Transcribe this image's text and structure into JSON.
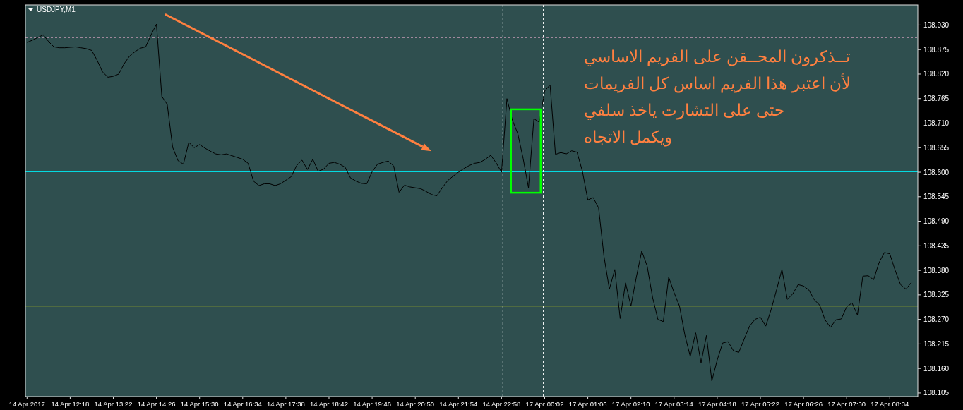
{
  "chart_data": {
    "type": "line",
    "title": "USDJPY,M1",
    "categories": [
      "14 Apr 2017",
      null,
      null,
      null,
      null,
      null,
      null,
      null,
      "14 Apr 12:18",
      null,
      null,
      null,
      null,
      null,
      null,
      null,
      "14 Apr 13:22",
      null,
      null,
      null,
      null,
      null,
      null,
      null,
      "14 Apr 14:26",
      null,
      null,
      null,
      null,
      null,
      null,
      null,
      "14 Apr 15:30",
      null,
      null,
      null,
      null,
      null,
      null,
      null,
      "14 Apr 16:34",
      null,
      null,
      null,
      null,
      null,
      null,
      null,
      "14 Apr 17:38",
      null,
      null,
      null,
      null,
      null,
      null,
      null,
      "14 Apr 18:42",
      null,
      null,
      null,
      null,
      null,
      null,
      null,
      "14 Apr 19:46",
      null,
      null,
      null,
      null,
      null,
      null,
      null,
      "14 Apr 20:50",
      null,
      null,
      null,
      null,
      null,
      null,
      null,
      "14 Apr 21:54",
      null,
      null,
      null,
      null,
      null,
      null,
      null,
      "14 Apr 22:58",
      null,
      null,
      null,
      null,
      null,
      null,
      null,
      "17 Apr 00:02",
      null,
      null,
      null,
      null,
      null,
      null,
      null,
      "17 Apr 01:06",
      null,
      null,
      null,
      null,
      null,
      null,
      null,
      "17 Apr 02:10",
      null,
      null,
      null,
      null,
      null,
      null,
      null,
      "17 Apr 03:14",
      null,
      null,
      null,
      null,
      null,
      null,
      null,
      "17 Apr 04:18",
      null,
      null,
      null,
      null,
      null,
      null,
      null,
      "17 Apr 05:22",
      null,
      null,
      null,
      null,
      null,
      null,
      null,
      "17 Apr 06:26",
      null,
      null,
      null,
      null,
      null,
      null,
      null,
      "17 Apr 07:30",
      null,
      null,
      null,
      null,
      null,
      null,
      null,
      "17 Apr 08:34",
      null,
      null,
      null,
      null
    ],
    "ylim": [
      108.097,
      108.975
    ],
    "yticks": [
      {
        "value": 108.105,
        "label": "108.105"
      },
      {
        "value": 108.16,
        "label": "108.160"
      },
      {
        "value": 108.215,
        "label": "108.215"
      },
      {
        "value": 108.27,
        "label": "108.270"
      },
      {
        "value": 108.325,
        "label": "108.325"
      },
      {
        "value": 108.38,
        "label": "108.380"
      },
      {
        "value": 108.435,
        "label": "108.435"
      },
      {
        "value": 108.49,
        "label": "108.490"
      },
      {
        "value": 108.545,
        "label": "108.545"
      },
      {
        "value": 108.6,
        "label": "108.600"
      },
      {
        "value": 108.655,
        "label": "108.655"
      },
      {
        "value": 108.71,
        "label": "108.710"
      },
      {
        "value": 108.765,
        "label": "108.765"
      },
      {
        "value": 108.82,
        "label": "108.820"
      },
      {
        "value": 108.875,
        "label": "108.875"
      },
      {
        "value": 108.93,
        "label": "108.930"
      }
    ],
    "series": [
      {
        "color": "#000000",
        "values": [
          108.891,
          108.896,
          108.902,
          108.908,
          108.893,
          108.881,
          108.879,
          108.879,
          108.88,
          108.881,
          108.879,
          108.877,
          108.873,
          108.851,
          108.825,
          108.813,
          108.815,
          108.82,
          108.843,
          108.86,
          108.87,
          108.878,
          108.881,
          108.908,
          108.932,
          108.77,
          108.752,
          108.656,
          108.626,
          108.618,
          108.667,
          108.655,
          108.662,
          108.654,
          108.647,
          108.641,
          108.639,
          108.641,
          108.637,
          108.633,
          108.629,
          108.62,
          108.58,
          108.57,
          108.574,
          108.574,
          108.57,
          108.574,
          108.582,
          108.59,
          108.615,
          108.627,
          108.606,
          108.629,
          108.602,
          108.607,
          108.62,
          108.622,
          108.618,
          108.611,
          108.587,
          108.58,
          108.575,
          108.574,
          108.601,
          108.618,
          108.622,
          108.625,
          108.614,
          108.555,
          108.571,
          108.567,
          108.565,
          108.563,
          108.557,
          108.55,
          108.547,
          108.565,
          108.581,
          108.591,
          108.6,
          108.608,
          108.615,
          108.62,
          108.622,
          108.629,
          108.638,
          108.621,
          108.6,
          108.765,
          108.717,
          108.687,
          108.631,
          108.565,
          108.72,
          108.712,
          108.782,
          108.796,
          108.64,
          108.644,
          108.641,
          108.648,
          108.645,
          108.602,
          108.538,
          108.543,
          108.52,
          108.411,
          108.338,
          108.382,
          108.272,
          108.352,
          108.3,
          108.365,
          108.423,
          108.39,
          108.32,
          108.27,
          108.265,
          108.365,
          108.33,
          108.3,
          108.235,
          108.187,
          108.24,
          108.173,
          108.234,
          108.132,
          108.179,
          108.217,
          108.22,
          108.2,
          108.196,
          108.226,
          108.255,
          108.27,
          108.275,
          108.255,
          108.292,
          108.336,
          108.382,
          108.315,
          108.327,
          108.348,
          108.345,
          108.336,
          108.314,
          108.302,
          108.269,
          108.252,
          108.269,
          108.271,
          108.298,
          108.307,
          108.28,
          108.367,
          108.368,
          108.359,
          108.397,
          108.42,
          108.417,
          108.38,
          108.348,
          108.338,
          108.353
        ]
      }
    ],
    "ref_lines": [
      {
        "axis": "y",
        "value": 108.601,
        "color": "#00e8f0"
      },
      {
        "axis": "y",
        "value": 108.3,
        "color": "#f0f000"
      },
      {
        "axis": "y",
        "value": 108.902,
        "color": "#e0a8c8",
        "line_style": "dashed"
      }
    ],
    "annotations": [
      "تــذكرون المحــقن على الفريم الاساسي",
      "لأن اعتبر هذا الفريم اساس كل الفريمات",
      "حتى على التشارت  ياخذ سلفي",
      "ويكمل الاتجاه"
    ],
    "grid": false,
    "marker": "none"
  }
}
